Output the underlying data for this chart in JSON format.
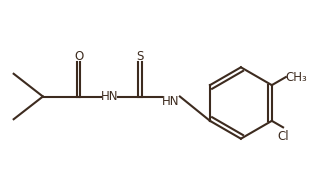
{
  "bg_color": "#ffffff",
  "line_color": "#3d2b1f",
  "line_width": 1.5,
  "font_size": 8.5,
  "figsize": [
    3.13,
    1.93
  ],
  "dpi": 100,
  "atoms": {
    "O_label": "O",
    "S_label": "S",
    "NH1_label": "HN",
    "NH2_label": "HN",
    "Cl_label": "Cl",
    "CH3_label": "CH₃"
  }
}
